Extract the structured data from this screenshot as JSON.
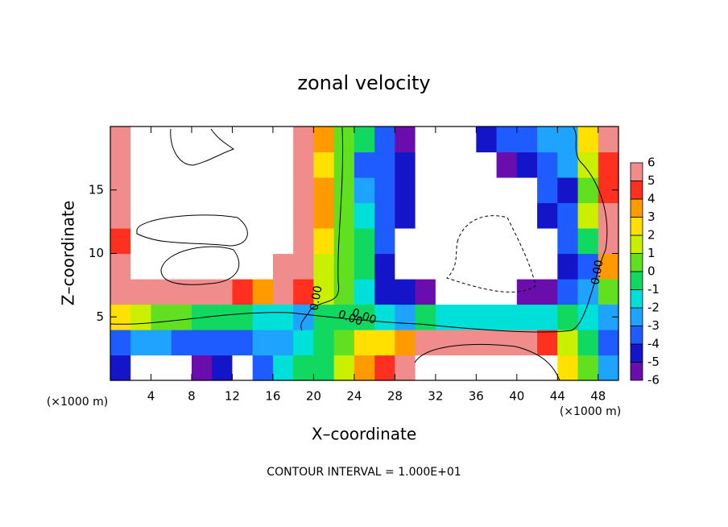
{
  "chart_data": {
    "type": "contour",
    "title": "zonal velocity",
    "x_label": "X–coordinate",
    "y_label": "Z–coordinate",
    "x_unit": "(×1000 m)",
    "y_unit": "(×1000 m)",
    "footer": "CONTOUR INTERVAL = 1.000E+01",
    "contour_labels": [
      "0.00",
      "0.00",
      "0.00",
      "0.00"
    ],
    "xlim": [
      0,
      50
    ],
    "ylim": [
      0,
      20
    ],
    "xticks": [
      4,
      8,
      12,
      16,
      20,
      24,
      28,
      32,
      36,
      40,
      44,
      48
    ],
    "yticks": [
      5,
      10,
      15
    ],
    "levels": [
      -6,
      -5,
      -4,
      -3,
      -2,
      -1,
      0,
      1,
      2,
      3,
      4,
      5,
      6
    ],
    "colors": [
      "#6a0dad",
      "#1414c8",
      "#1e5cff",
      "#1ea4ff",
      "#00e0d8",
      "#10d860",
      "#60e020",
      "#c8f000",
      "#ffe000",
      "#ff9a00",
      "#ff3020",
      "#f08c8c"
    ],
    "x": [
      1,
      3,
      5,
      7,
      9,
      11,
      13,
      15,
      17,
      19,
      21,
      23,
      25,
      27,
      29,
      31,
      33,
      35,
      37,
      39,
      41,
      43,
      45,
      47,
      49
    ],
    "y": [
      1,
      3,
      5,
      7,
      9,
      11,
      13,
      15,
      17,
      19
    ],
    "z": [
      [
        -5,
        -8,
        -8,
        -8,
        -6,
        -5,
        -7,
        -4,
        -2,
        -1,
        -1,
        1,
        3,
        4,
        5,
        7,
        8,
        8,
        8,
        8,
        8,
        7,
        2,
        0,
        -3
      ],
      [
        -4,
        -3,
        -3,
        -4,
        -4,
        -4,
        -4,
        -3,
        -3,
        -2,
        -1,
        0,
        2,
        2,
        3,
        6,
        5,
        5,
        5,
        5,
        5,
        4,
        1,
        -1,
        -4
      ],
      [
        2,
        1,
        0,
        0,
        -1,
        -1,
        -1,
        -2,
        -2,
        -3,
        -1,
        -1,
        -1,
        -2,
        -3,
        -1,
        -2,
        -2,
        -2,
        -2,
        -2,
        -2,
        -1,
        -2,
        -3
      ],
      [
        5,
        6,
        6,
        5,
        5,
        5,
        4,
        3,
        5,
        4,
        1,
        0,
        -2,
        -5,
        -5,
        -6,
        -7,
        -7,
        -7,
        -7,
        -6,
        -6,
        -4,
        -3,
        0
      ],
      [
        5,
        8,
        8,
        8,
        8,
        8,
        8,
        7,
        6,
        5,
        1,
        0,
        -1,
        -5,
        -8,
        -8,
        -8,
        -8,
        -8,
        -8,
        -8,
        -8,
        -5,
        -4,
        3
      ],
      [
        4,
        8,
        8,
        8,
        8,
        8,
        8,
        8,
        7,
        5,
        2,
        0,
        -1,
        -4,
        -8,
        -8,
        -8,
        -8,
        -8,
        -8,
        -8,
        -7,
        -4,
        -1,
        5
      ],
      [
        5,
        8,
        8,
        8,
        8,
        8,
        8,
        8,
        8,
        5,
        3,
        0,
        -2,
        -4,
        -5,
        -8,
        -8,
        -8,
        -8,
        -8,
        -8,
        -5,
        -4,
        1,
        5
      ],
      [
        5,
        8,
        8,
        8,
        8,
        8,
        8,
        8,
        8,
        5,
        3,
        0,
        -3,
        -4,
        -5,
        -8,
        -8,
        -8,
        -8,
        -8,
        -8,
        -4,
        -5,
        0,
        4
      ],
      [
        6,
        8,
        8,
        8,
        8,
        8,
        8,
        8,
        8,
        5,
        2,
        0,
        -4,
        -4,
        -5,
        -8,
        -8,
        -8,
        -7,
        -6,
        -5,
        -4,
        -3,
        1,
        4
      ],
      [
        6,
        8,
        8,
        8,
        8,
        8,
        8,
        8,
        8,
        6,
        3,
        0,
        -1,
        -4,
        -6,
        -8,
        -8,
        -8,
        -5,
        -4,
        -4,
        -3,
        -3,
        2,
        6
      ]
    ]
  }
}
